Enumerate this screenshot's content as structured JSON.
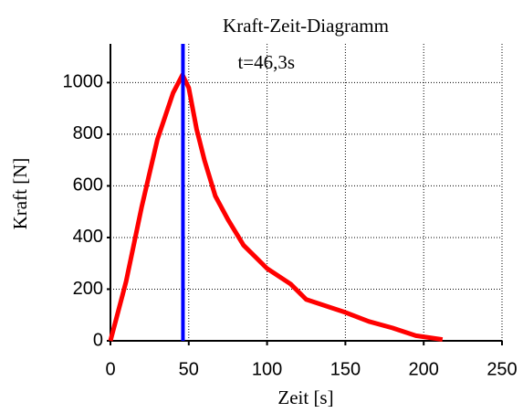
{
  "chart_data": {
    "type": "line",
    "title": "Kraft-Zeit-Diagramm",
    "x_label": "Zeit [s]",
    "y_label": "Kraft [N]",
    "x": [
      0,
      10,
      20,
      30,
      40,
      46,
      50,
      55,
      60,
      67,
      75,
      85,
      100,
      115,
      125,
      140,
      150,
      165,
      180,
      195,
      212
    ],
    "series": [
      {
        "name": "Kraft",
        "color": "#ff0000",
        "values": [
          0,
          230,
          520,
          780,
          960,
          1030,
          980,
          820,
          700,
          560,
          470,
          370,
          280,
          220,
          160,
          130,
          110,
          75,
          50,
          20,
          5
        ]
      }
    ],
    "marker": {
      "x": 46.3,
      "label": "t=46,3s",
      "color": "#0000ff"
    },
    "xlim": [
      0,
      250
    ],
    "xticks": [
      0,
      50,
      100,
      150,
      200,
      250
    ],
    "ylim": [
      0,
      1150
    ],
    "yticks": [
      0,
      200,
      400,
      600,
      800,
      1000
    ],
    "grid": true
  }
}
